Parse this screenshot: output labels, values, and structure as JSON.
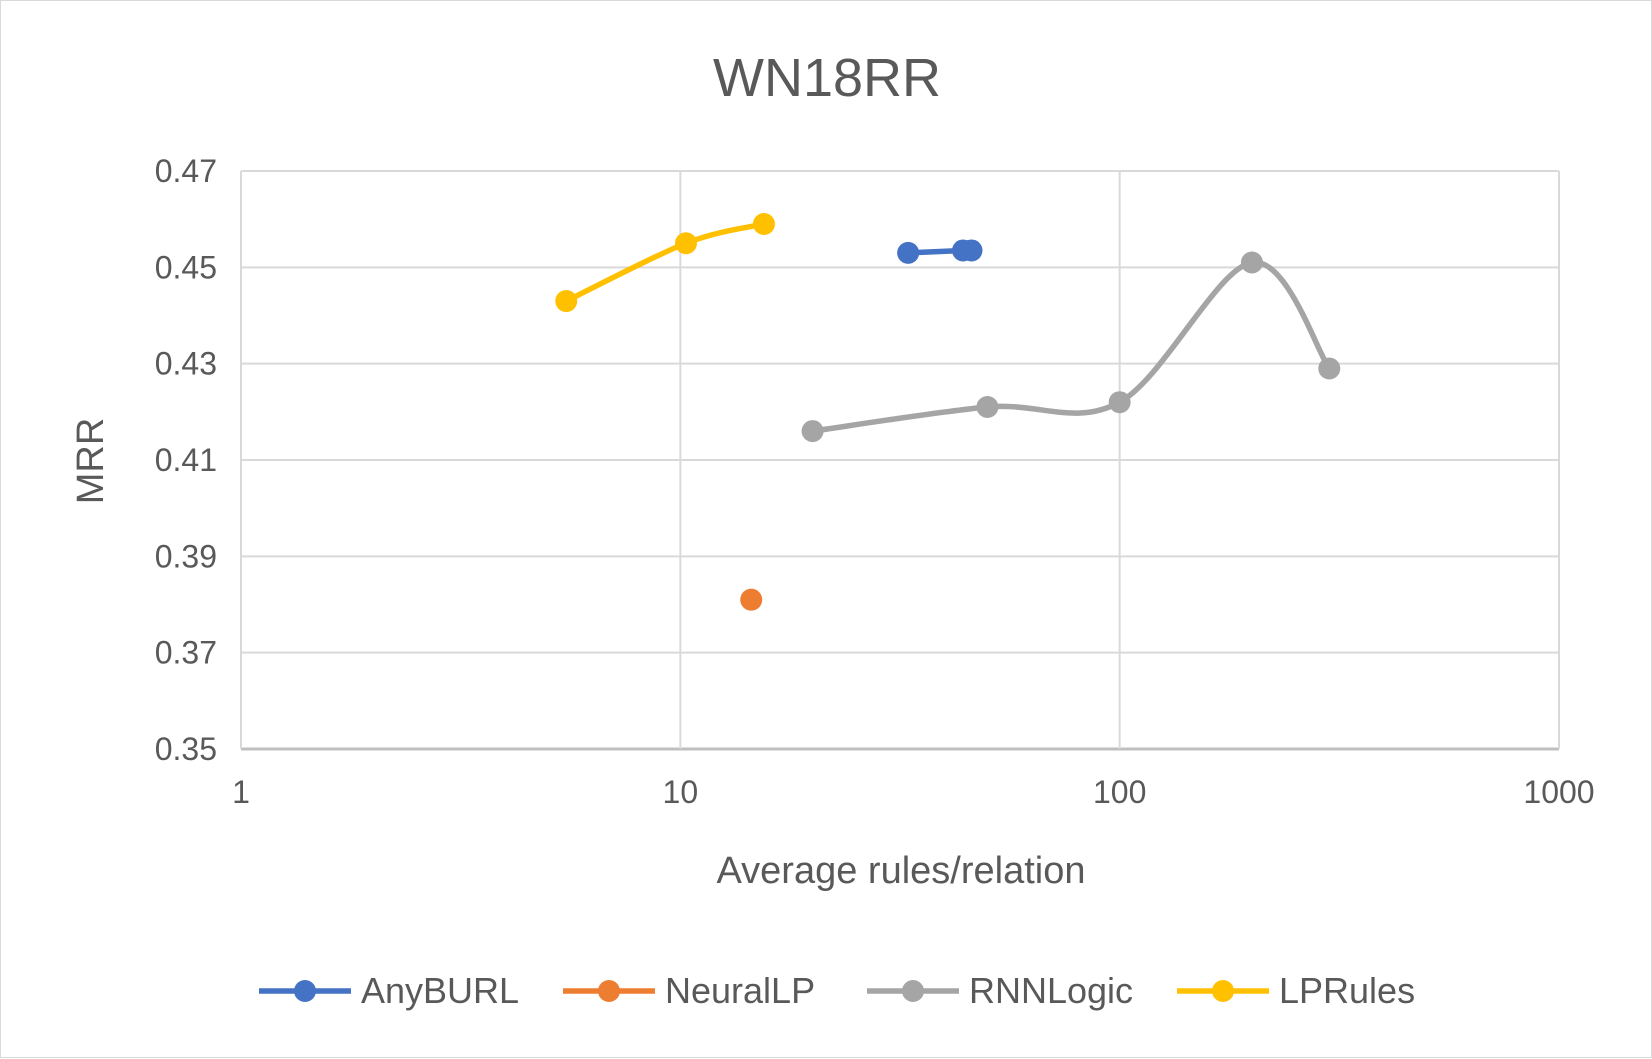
{
  "chart_data": {
    "type": "line",
    "title": "WN18RR",
    "xlabel": "Average rules/relation",
    "ylabel": "MRR",
    "xscale": "log",
    "xlim": [
      1,
      1000
    ],
    "ylim": [
      0.35,
      0.47
    ],
    "xticks": [
      "1",
      "10",
      "100",
      "1000"
    ],
    "yticks": [
      "0.35",
      "0.37",
      "0.39",
      "0.41",
      "0.43",
      "0.45",
      "0.47"
    ],
    "grid": true,
    "legend_position": "bottom",
    "series": [
      {
        "name": "AnyBURL",
        "color": "#4472c4",
        "smooth": false,
        "points": [
          [
            33,
            0.453
          ],
          [
            44,
            0.4535
          ],
          [
            46,
            0.4535
          ]
        ]
      },
      {
        "name": "NeuralLP",
        "color": "#ed7d31",
        "smooth": false,
        "points": [
          [
            14.5,
            0.381
          ]
        ]
      },
      {
        "name": "RNNLogic",
        "color": "#a5a5a5",
        "smooth": true,
        "points": [
          [
            20,
            0.416
          ],
          [
            50,
            0.421
          ],
          [
            100,
            0.422
          ],
          [
            200,
            0.451
          ],
          [
            300,
            0.429
          ]
        ]
      },
      {
        "name": "LPRules",
        "color": "#ffc000",
        "smooth": true,
        "points": [
          [
            5.5,
            0.443
          ],
          [
            10.3,
            0.455
          ],
          [
            15.5,
            0.459
          ]
        ]
      }
    ]
  }
}
